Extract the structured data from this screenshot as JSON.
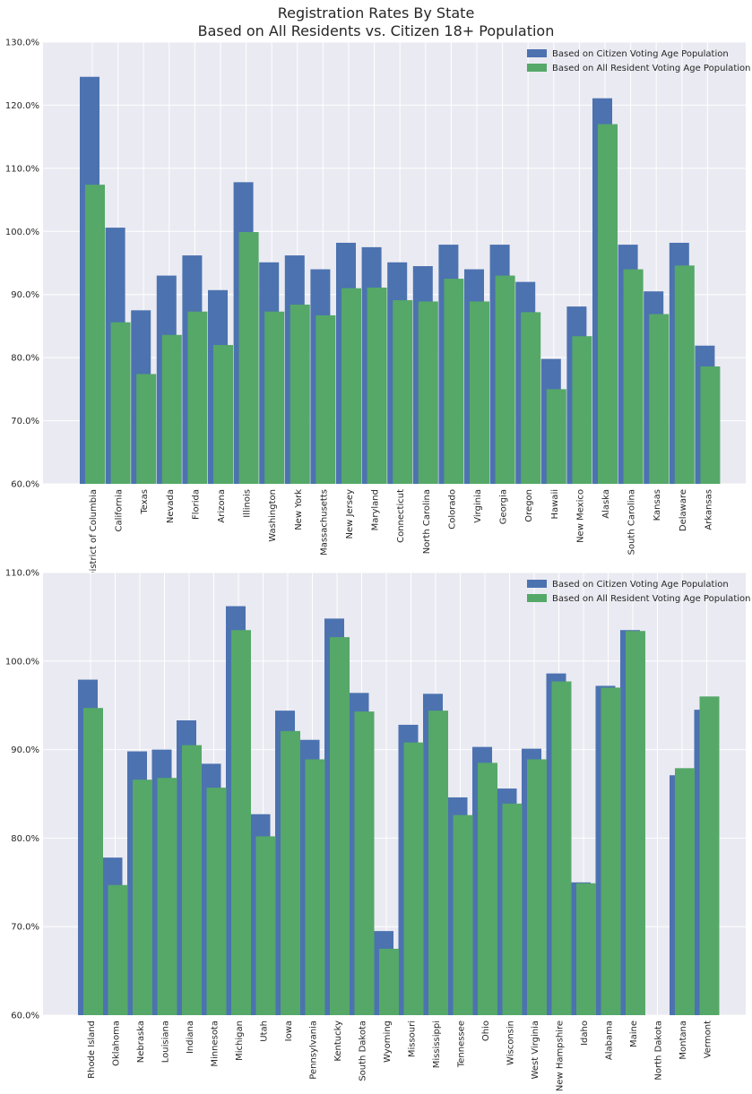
{
  "title_line1": "Registration Rates By State",
  "title_line2": "Based on All Residents vs. Citizen 18+ Population",
  "colors": {
    "citizen": "#4c72b0",
    "resident": "#55a868",
    "background": "#eaeaf2",
    "grid": "#ffffff"
  },
  "chart_data": [
    {
      "type": "bar",
      "ylim": [
        60,
        130
      ],
      "yticks": [
        "60.0%",
        "70.0%",
        "80.0%",
        "90.0%",
        "100.0%",
        "110.0%",
        "120.0%",
        "130.0%"
      ],
      "ytick_values": [
        60,
        70,
        80,
        90,
        100,
        110,
        120,
        130
      ],
      "legend_position": "top-right",
      "categories": [
        "District of Columbia",
        "California",
        "Texas",
        "Nevada",
        "Florida",
        "Arizona",
        "Illinois",
        "Washington",
        "New York",
        "Massachusetts",
        "New Jersey",
        "Maryland",
        "Connecticut",
        "North Carolina",
        "Colorado",
        "Virginia",
        "Georgia",
        "Oregon",
        "Hawaii",
        "New Mexico",
        "Alaska",
        "South Carolina",
        "Kansas",
        "Delaware",
        "Arkansas"
      ],
      "series": [
        {
          "name": "Based on Citizen Voting Age Population",
          "values": [
            124.5,
            100.6,
            87.5,
            93.0,
            96.2,
            90.7,
            107.8,
            95.1,
            96.2,
            94.0,
            98.2,
            97.5,
            95.1,
            94.5,
            97.9,
            94.0,
            97.9,
            92.0,
            79.8,
            88.1,
            121.1,
            97.9,
            90.5,
            98.2,
            81.9
          ]
        },
        {
          "name": "Based on All Resident Voting Age Population",
          "values": [
            107.4,
            85.6,
            77.4,
            83.6,
            87.3,
            82.0,
            99.9,
            87.3,
            88.4,
            86.7,
            91.0,
            91.1,
            89.1,
            88.9,
            92.5,
            88.9,
            93.0,
            87.2,
            75.0,
            83.4,
            117.0,
            94.0,
            86.9,
            94.6,
            78.6
          ]
        }
      ]
    },
    {
      "type": "bar",
      "ylim": [
        60,
        110
      ],
      "yticks": [
        "60.0%",
        "70.0%",
        "80.0%",
        "90.0%",
        "100.0%",
        "110.0%"
      ],
      "ytick_values": [
        60,
        70,
        80,
        90,
        100,
        110
      ],
      "legend_position": "top-right",
      "categories": [
        "Rhode Island",
        "Oklahoma",
        "Nebraska",
        "Louisiana",
        "Indiana",
        "Minnesota",
        "Michigan",
        "Utah",
        "Iowa",
        "Pennsylvania",
        "Kentucky",
        "South Dakota",
        "Wyoming",
        "Missouri",
        "Mississippi",
        "Tennessee",
        "Ohio",
        "Wisconsin",
        "West Virginia",
        "New Hampshire",
        "Idaho",
        "Alabama",
        "Maine",
        "North Dakota",
        "Montana",
        "Vermont"
      ],
      "series": [
        {
          "name": "Based on Citizen Voting Age Population",
          "values": [
            97.9,
            77.8,
            89.8,
            90.0,
            93.3,
            88.4,
            106.2,
            82.7,
            94.4,
            91.1,
            104.8,
            96.4,
            69.5,
            92.8,
            96.3,
            84.6,
            90.3,
            85.6,
            90.1,
            98.6,
            75.0,
            97.2,
            103.5,
            null,
            87.1,
            94.5
          ]
        },
        {
          "name": "Based on All Resident Voting Age Population",
          "values": [
            94.7,
            74.7,
            86.6,
            86.8,
            90.5,
            85.7,
            103.5,
            80.2,
            92.1,
            88.9,
            102.7,
            94.3,
            67.5,
            90.8,
            94.4,
            82.6,
            88.5,
            83.9,
            88.9,
            97.7,
            74.9,
            97.0,
            103.4,
            null,
            87.9,
            96.0
          ]
        }
      ]
    }
  ]
}
